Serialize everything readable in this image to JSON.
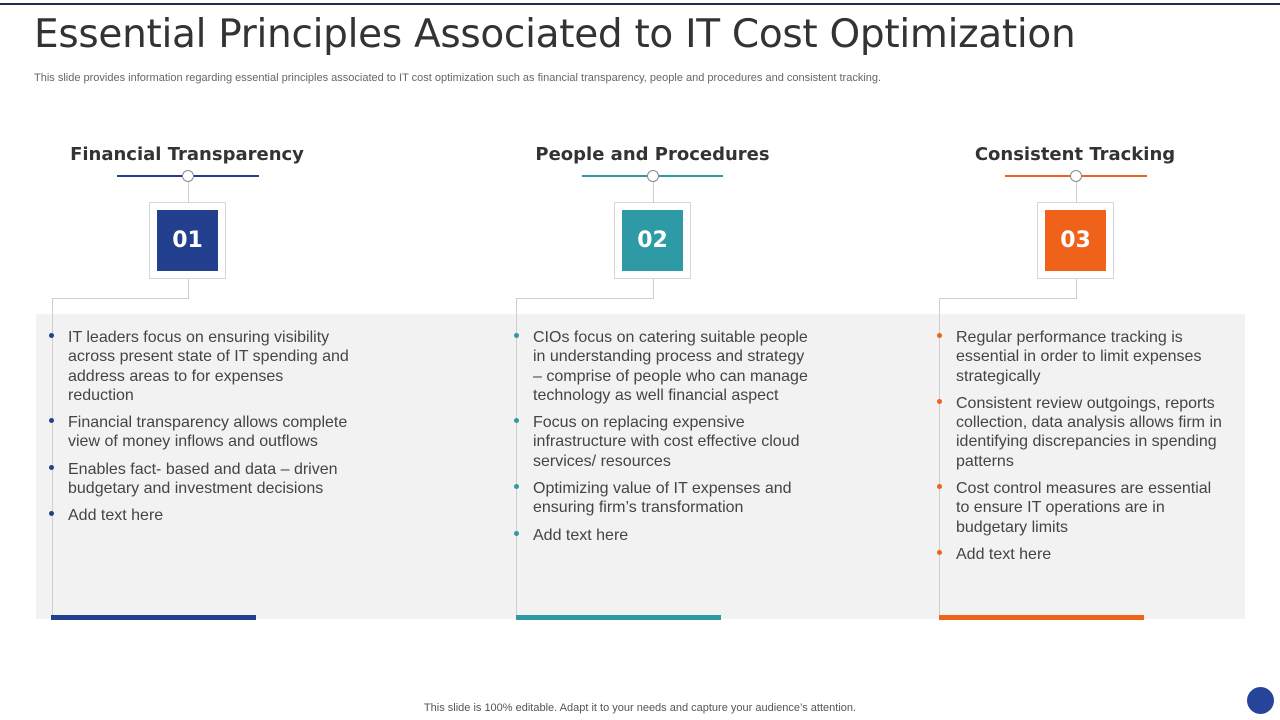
{
  "title": "Essential Principles Associated to IT Cost Optimization",
  "subtitle": "This slide provides information regarding essential principles associated to IT cost optimization such as financial transparency, people and procedures and consistent tracking.",
  "footer": "This slide is 100% editable. Adapt it to your needs and capture your audience’s attention.",
  "colors": {
    "navy": "#23408e",
    "teal": "#2e9aa6",
    "orange": "#f0611a",
    "panel": "#f2f2f2"
  },
  "columns": [
    {
      "heading": "Financial Transparency",
      "number": "01",
      "color": "#23408e",
      "bullets": [
        "IT leaders focus on ensuring visibility across present state of IT spending and address areas to for expenses reduction",
        "Financial transparency allows complete view of money inflows and outflows",
        "Enables fact- based and data – driven budgetary and investment decisions",
        "Add text here"
      ]
    },
    {
      "heading": "People and Procedures",
      "number": "02",
      "color": "#2e9aa6",
      "bullets": [
        "CIOs focus on catering suitable people in understanding process and strategy – comprise of people who can manage technology as well financial aspect",
        "Focus on replacing expensive infrastructure with cost effective cloud services/ resources",
        "Optimizing value of IT expenses and ensuring firm’s transformation",
        "Add text here"
      ]
    },
    {
      "heading": "Consistent Tracking",
      "number": "03",
      "color": "#f0611a",
      "bullets": [
        "Regular performance tracking is essential in order to limit expenses strategically",
        "Consistent review outgoings, reports collection, data analysis allows firm in identifying discrepancies in spending patterns",
        "Cost control measures are essential to ensure IT operations are in budgetary limits",
        "Add text here"
      ]
    }
  ]
}
